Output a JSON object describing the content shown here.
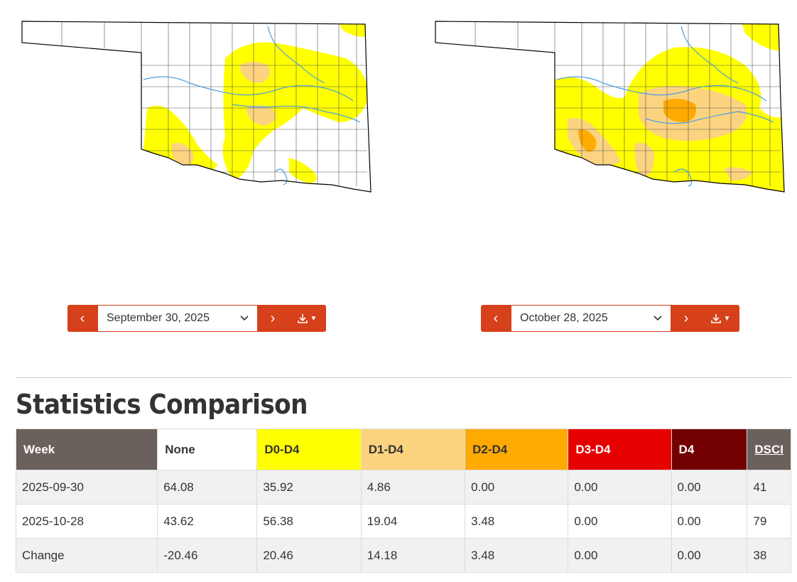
{
  "colors": {
    "accent": "#d6401a",
    "none": "#ffffff",
    "d0": "#ffff00",
    "d1": "#fcd37f",
    "d2": "#ffaa00",
    "d3": "#e60000",
    "d4": "#730000",
    "header_dark": "#6a605c",
    "river": "#4a9fe0"
  },
  "maps": {
    "left": {
      "date": "September 30, 2025"
    },
    "right": {
      "date": "October 28, 2025"
    }
  },
  "icons": {
    "prev": "chevron-left-icon",
    "next": "chevron-right-icon",
    "select": "chevron-down-icon",
    "download": "download-icon"
  },
  "stats": {
    "title": "Statistics Comparison",
    "headers": {
      "week": "Week",
      "none": "None",
      "d0": "D0-D4",
      "d1": "D1-D4",
      "d2": "D2-D4",
      "d3": "D3-D4",
      "d4": "D4",
      "dsci": "DSCI"
    },
    "rows": [
      {
        "week": "2025-09-30",
        "none": "64.08",
        "d0": "35.92",
        "d1": "4.86",
        "d2": "0.00",
        "d3": "0.00",
        "d4": "0.00",
        "dsci": "41"
      },
      {
        "week": "2025-10-28",
        "none": "43.62",
        "d0": "56.38",
        "d1": "19.04",
        "d2": "3.48",
        "d3": "0.00",
        "d4": "0.00",
        "dsci": "79"
      },
      {
        "week": "Change",
        "none": "-20.46",
        "d0": "20.46",
        "d1": "14.18",
        "d2": "3.48",
        "d3": "0.00",
        "d4": "0.00",
        "dsci": "38"
      }
    ]
  }
}
